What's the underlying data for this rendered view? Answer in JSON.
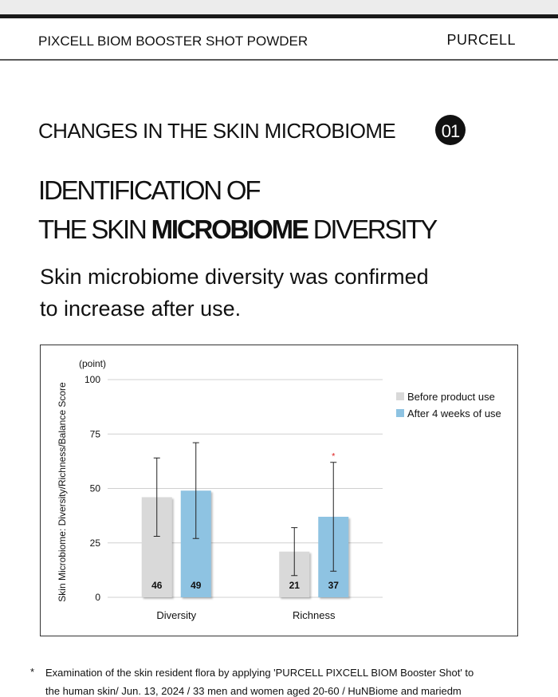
{
  "header": {
    "product": "PIXCELL BIOM BOOSTER SHOT POWDER",
    "brand": "PURCELL"
  },
  "section": {
    "title": "CHANGES IN THE SKIN MICROBIOME",
    "number": "01"
  },
  "headline": {
    "line1": "IDENTIFICATION OF",
    "line2": [
      "THE SKIN ",
      "MICROBIOME",
      " DIVERSITY"
    ]
  },
  "subtitle": [
    "Skin microbiome diversity was confirmed",
    "to increase after use."
  ],
  "chart_data": {
    "type": "bar",
    "y_unit": "(point)",
    "ylabel": "Skin Microbiome: Diversity/Richness/Balance Score",
    "categories": [
      "Diversity",
      "Richness"
    ],
    "series": [
      {
        "name": "Before product use",
        "color": "#d9d9d9",
        "values": [
          46,
          21
        ],
        "errors": [
          18,
          11
        ]
      },
      {
        "name": "After 4 weeks of use",
        "color": "#8ec3e2",
        "values": [
          49,
          37
        ],
        "errors": [
          22,
          25
        ]
      }
    ],
    "ylim": [
      0,
      100
    ],
    "yticks": [
      0,
      25,
      50,
      75,
      100
    ],
    "grid": true,
    "legend": "right",
    "annotation": "*"
  },
  "footnote": {
    "marker": "*",
    "lines": [
      "Examination of the skin resident flora by applying 'PURCELL PIXCELL BIOM Booster Shot' to",
      "the human skin/ Jun. 13, 2024 / 33 men and women aged 20-60 / HuNBiome and mariedm"
    ]
  }
}
